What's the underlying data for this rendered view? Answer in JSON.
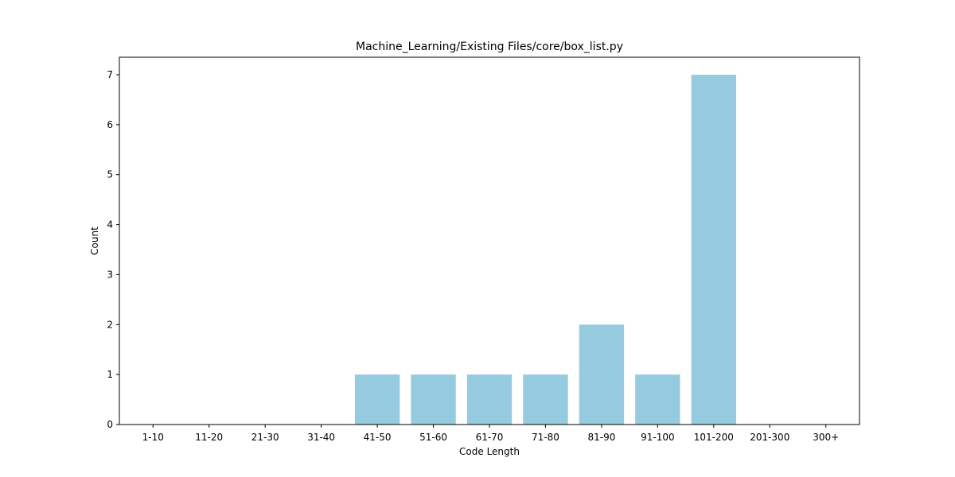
{
  "chart_data": {
    "type": "bar",
    "title": "Machine_Learning/Existing Files/core/box_list.py",
    "xlabel": "Code Length",
    "ylabel": "Count",
    "categories": [
      "1-10",
      "11-20",
      "21-30",
      "31-40",
      "41-50",
      "51-60",
      "61-70",
      "71-80",
      "81-90",
      "91-100",
      "101-200",
      "201-300",
      "300+"
    ],
    "values": [
      0,
      0,
      0,
      0,
      1,
      1,
      1,
      1,
      2,
      1,
      7,
      0,
      0
    ],
    "ylim": [
      0,
      7.35
    ],
    "yticks": [
      "0",
      "1",
      "2",
      "3",
      "4",
      "5",
      "6",
      "7"
    ],
    "bar_color": "#96cade",
    "grid": false,
    "legend": "none"
  }
}
